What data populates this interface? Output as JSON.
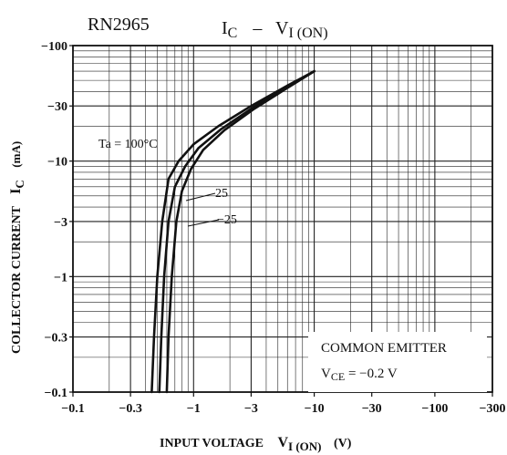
{
  "chart_data": {
    "type": "line",
    "part_number": "RN2965",
    "title": {
      "main": "I",
      "main_sub": "C",
      "dash": "–",
      "second": "V",
      "second_sub": "I (ON)"
    },
    "xlabel": {
      "text": "INPUT VOLTAGE",
      "sym": "V",
      "sub": "I (ON)",
      "unit": "(V)"
    },
    "ylabel": {
      "text": "COLLECTOR CURRENT",
      "sym": "I",
      "sub": "C",
      "unit": "(mA)"
    },
    "x_scale": "log",
    "y_scale": "log",
    "xlim": [
      -0.1,
      -300
    ],
    "ylim": [
      -0.1,
      -100
    ],
    "x_ticks": [
      {
        "value": -0.1,
        "label": "−0.1"
      },
      {
        "value": -0.3,
        "label": "−0.3"
      },
      {
        "value": -1,
        "label": "−1"
      },
      {
        "value": -3,
        "label": "−3"
      },
      {
        "value": -10,
        "label": "−10"
      },
      {
        "value": -30,
        "label": "−30"
      },
      {
        "value": -100,
        "label": "−100"
      },
      {
        "value": -300,
        "label": "−300"
      }
    ],
    "y_ticks": [
      {
        "value": -100,
        "label": "−100"
      },
      {
        "value": -30,
        "label": "−30"
      },
      {
        "value": -10,
        "label": "−10"
      },
      {
        "value": -3,
        "label": "−3"
      },
      {
        "value": -1,
        "label": "−1"
      },
      {
        "value": -0.3,
        "label": "−0.3"
      },
      {
        "value": -0.1,
        "label": "−0.1"
      }
    ],
    "grid": true,
    "series": [
      {
        "name": "Ta = 100°C",
        "label": "Ta = 100°C",
        "x": [
          -0.45,
          -0.47,
          -0.5,
          -0.55,
          -0.62,
          -0.75,
          -1.0,
          -1.6,
          -3,
          -6,
          -10
        ],
        "y": [
          -0.1,
          -0.3,
          -1,
          -3,
          -7,
          -10,
          -14,
          -20,
          -30,
          -45,
          -60
        ]
      },
      {
        "name": "25",
        "label": "25",
        "x": [
          -0.52,
          -0.54,
          -0.57,
          -0.62,
          -0.7,
          -0.85,
          -1.1,
          -1.7,
          -3.1,
          -6,
          -10
        ],
        "y": [
          -0.1,
          -0.3,
          -1,
          -3,
          -6,
          -9,
          -13,
          -19,
          -29,
          -44,
          -60
        ]
      },
      {
        "name": "−25",
        "label": "−25",
        "x": [
          -0.6,
          -0.62,
          -0.66,
          -0.72,
          -0.8,
          -0.95,
          -1.2,
          -1.8,
          -3.2,
          -6,
          -10
        ],
        "y": [
          -0.1,
          -0.3,
          -1,
          -3,
          -5.5,
          -8.5,
          -12.5,
          -18.5,
          -28.5,
          -43,
          -60
        ]
      }
    ],
    "legend_box": {
      "line1": "COMMON EMITTER",
      "line2_sym": "V",
      "line2_sub": "CE",
      "line2_rest": " = −0.2 V"
    }
  }
}
